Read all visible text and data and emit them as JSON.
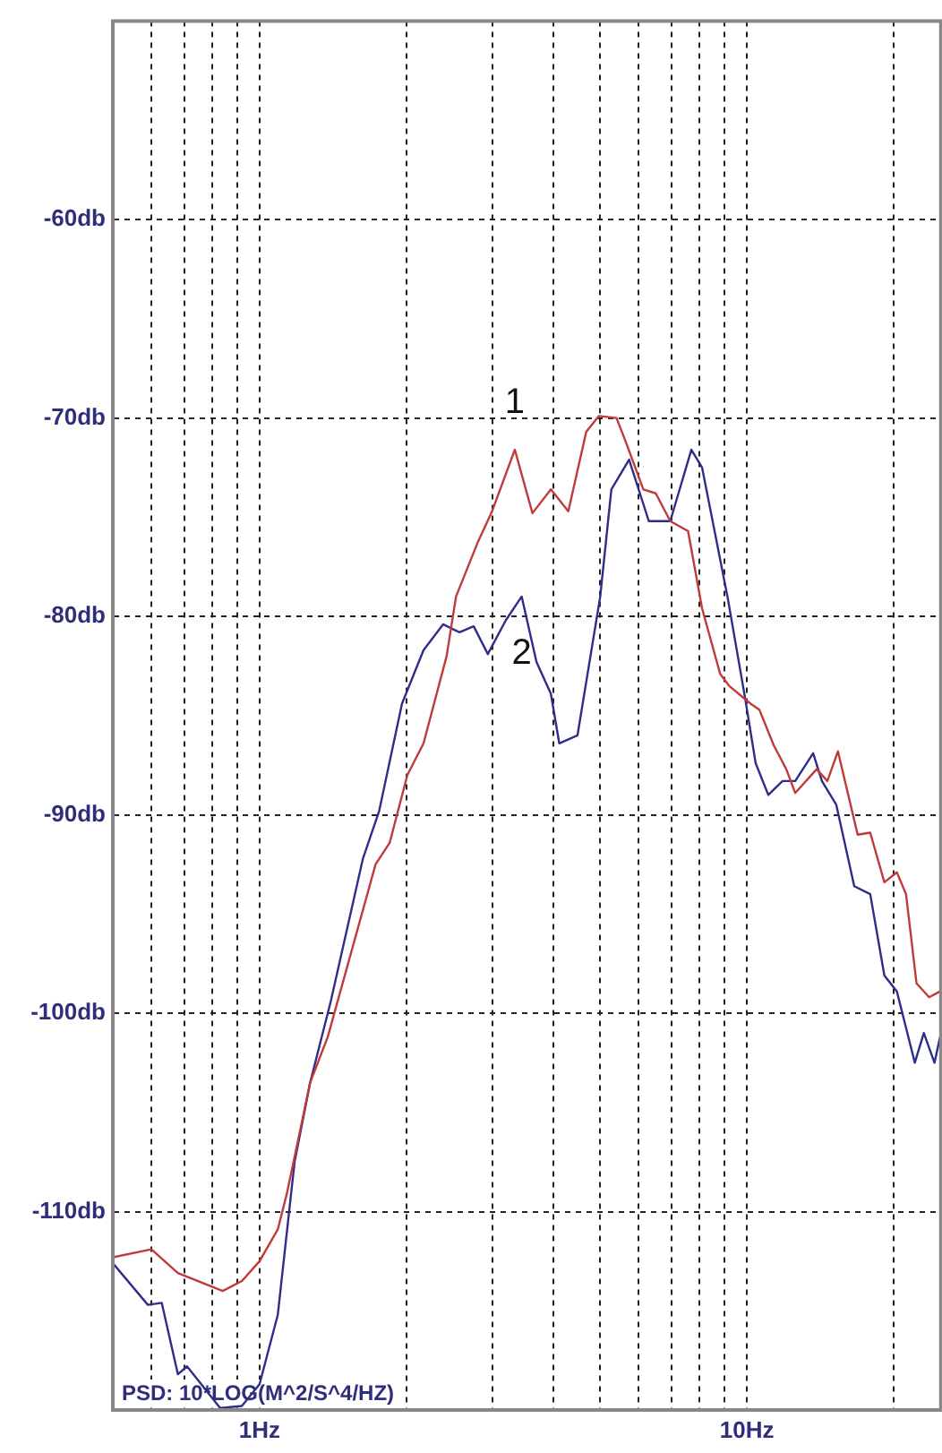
{
  "chart_data": {
    "type": "line",
    "log": "x",
    "grid": true,
    "marker": "none",
    "line_style": "solid",
    "legend": false,
    "xlim": [
      0.5,
      25
    ],
    "ylim": [
      -120,
      -50
    ],
    "xticks": [
      {
        "value": 0.6,
        "label": null
      },
      {
        "value": 0.7,
        "label": null
      },
      {
        "value": 0.8,
        "label": null
      },
      {
        "value": 0.9,
        "label": null
      },
      {
        "value": 1,
        "label": "1Hz"
      },
      {
        "value": 2,
        "label": null
      },
      {
        "value": 3,
        "label": null
      },
      {
        "value": 4,
        "label": null
      },
      {
        "value": 5,
        "label": null
      },
      {
        "value": 6,
        "label": null
      },
      {
        "value": 7,
        "label": null
      },
      {
        "value": 8,
        "label": null
      },
      {
        "value": 9,
        "label": null
      },
      {
        "value": 10,
        "label": "10Hz"
      },
      {
        "value": 20,
        "label": null
      }
    ],
    "yticks": [
      {
        "value": -110,
        "label": "-110db"
      },
      {
        "value": -100,
        "label": "-100db"
      },
      {
        "value": -90,
        "label": "-90db"
      },
      {
        "value": -80,
        "label": "-80db"
      },
      {
        "value": -70,
        "label": "-70db"
      },
      {
        "value": -60,
        "label": "-60db"
      }
    ],
    "annotations": [
      "PSD: 10*LOG(M^2/S^4/HZ)"
    ],
    "series": [
      {
        "name": "1",
        "color": "#c03a3a",
        "x": [
          0.5,
          0.6,
          0.68,
          0.84,
          0.92,
          1.0,
          1.09,
          1.14,
          1.27,
          1.38,
          1.73,
          1.85,
          2.01,
          2.17,
          2.42,
          2.53,
          2.8,
          3.0,
          3.34,
          3.63,
          3.96,
          4.3,
          4.68,
          4.97,
          5.4,
          5.64,
          6.13,
          6.5,
          6.96,
          7.57,
          8.09,
          8.81,
          9.19,
          10.17,
          10.6,
          11.35,
          12.04,
          12.56,
          13.9,
          14.62,
          15.37,
          16.87,
          17.9,
          19.14,
          20.3,
          21.2,
          22.28,
          23.65,
          24.9
        ],
        "values": [
          -112.3,
          -111.9,
          -113.1,
          -114.0,
          -113.5,
          -112.5,
          -110.9,
          -109,
          -103.5,
          -101.2,
          -92.5,
          -91.4,
          -88,
          -86.4,
          -82,
          -79,
          -76.3,
          -74.7,
          -71.6,
          -74.8,
          -73.6,
          -74.7,
          -70.7,
          -69.9,
          -70,
          -71.2,
          -73.6,
          -73.8,
          -75.2,
          -75.7,
          -79.6,
          -82.9,
          -83.5,
          -84.4,
          -84.7,
          -86.5,
          -87.7,
          -88.9,
          -87.7,
          -88.3,
          -86.8,
          -91,
          -90.9,
          -93.4,
          -92.9,
          -94,
          -98.5,
          -99.2,
          -98.9
        ]
      },
      {
        "name": "2",
        "color": "#2e2e8a",
        "x": [
          0.5,
          0.59,
          0.63,
          0.68,
          0.71,
          0.83,
          0.92,
          1.0,
          1.09,
          1.18,
          1.27,
          1.4,
          1.63,
          1.76,
          1.96,
          2.17,
          2.38,
          2.57,
          2.75,
          2.94,
          3.2,
          3.45,
          3.7,
          3.96,
          4.12,
          4.49,
          5.0,
          5.27,
          5.73,
          6.29,
          6.96,
          7.69,
          8.09,
          9.12,
          9.91,
          10.42,
          11.06,
          11.83,
          12.56,
          13.67,
          14.25,
          15.25,
          16.6,
          17.9,
          19.14,
          20.3,
          22.1,
          23.06,
          24.25,
          24.9
        ],
        "values": [
          -112.6,
          -114.7,
          -114.6,
          -118.2,
          -117.8,
          -119.9,
          -119.8,
          -118.7,
          -115.2,
          -107.5,
          -103.5,
          -99.4,
          -92.2,
          -89.8,
          -84.4,
          -81.7,
          -80.4,
          -80.8,
          -80.5,
          -81.9,
          -80.2,
          -79,
          -82.3,
          -83.9,
          -86.4,
          -86,
          -79,
          -73.6,
          -72.1,
          -75.2,
          -75.2,
          -71.6,
          -72.5,
          -79,
          -84.1,
          -87.4,
          -89,
          -88.3,
          -88.3,
          -86.9,
          -88.3,
          -89.5,
          -93.6,
          -94,
          -98.1,
          -98.9,
          -102.5,
          -101,
          -102.5,
          -101.2
        ]
      }
    ]
  }
}
